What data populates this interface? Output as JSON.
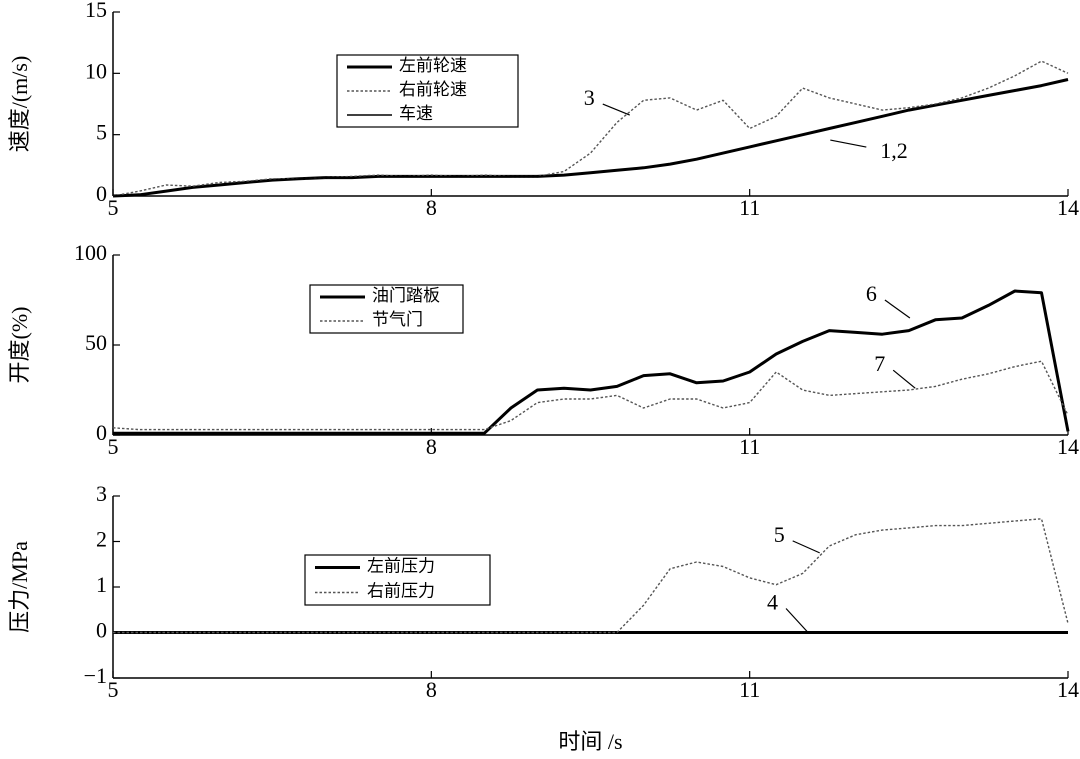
{
  "chart_data": [
    {
      "type": "line",
      "ylabel": "速度/(m/s)",
      "x": [
        5,
        5.25,
        5.5,
        5.75,
        6,
        6.25,
        6.5,
        6.75,
        7,
        7.25,
        7.5,
        7.75,
        8,
        8.25,
        8.5,
        8.75,
        9,
        9.25,
        9.5,
        9.75,
        10,
        10.25,
        10.5,
        10.75,
        11,
        11.25,
        11.5,
        11.75,
        12,
        12.25,
        12.5,
        12.75,
        13,
        13.25,
        13.5,
        13.75,
        14
      ],
      "series": [
        {
          "name": "左前轮速",
          "color": "#000000",
          "dash": "solid",
          "bold": true,
          "values": [
            0,
            0.1,
            0.4,
            0.7,
            0.9,
            1.1,
            1.3,
            1.4,
            1.5,
            1.5,
            1.6,
            1.6,
            1.6,
            1.6,
            1.6,
            1.6,
            1.6,
            1.7,
            1.9,
            2.1,
            2.3,
            2.6,
            3.0,
            3.5,
            4.0,
            4.5,
            5.0,
            5.5,
            6.0,
            6.5,
            7.0,
            7.4,
            7.8,
            8.2,
            8.6,
            9.0,
            9.5
          ]
        },
        {
          "name": "右前轮速",
          "color": "#555555",
          "dash": "dotted",
          "bold": false,
          "values": [
            0,
            0.4,
            0.9,
            0.8,
            1.1,
            1.2,
            1.4,
            1.4,
            1.5,
            1.6,
            1.7,
            1.6,
            1.7,
            1.6,
            1.7,
            1.6,
            1.6,
            2.0,
            3.5,
            6.0,
            7.8,
            8.0,
            7.0,
            7.8,
            5.5,
            6.5,
            8.8,
            8.0,
            7.5,
            7.0,
            7.2,
            7.5,
            8.0,
            8.8,
            9.8,
            11.0,
            10.0
          ]
        },
        {
          "name": "车速",
          "color": "#000000",
          "dash": "solid",
          "bold": false,
          "values": [
            0,
            0.1,
            0.4,
            0.7,
            0.9,
            1.1,
            1.3,
            1.4,
            1.5,
            1.5,
            1.6,
            1.6,
            1.6,
            1.6,
            1.6,
            1.6,
            1.6,
            1.7,
            1.9,
            2.1,
            2.3,
            2.6,
            3.0,
            3.5,
            4.0,
            4.5,
            5.0,
            5.5,
            6.0,
            6.5,
            7.0,
            7.4,
            7.8,
            8.2,
            8.6,
            9.0,
            9.5
          ]
        }
      ],
      "xlim": [
        5,
        14
      ],
      "xticks": [
        5,
        8,
        11,
        14
      ],
      "ylim": [
        0,
        15
      ],
      "yticks": [
        0,
        5,
        10,
        15
      ],
      "annotations": [
        {
          "text": "3",
          "x": 9.87,
          "y": 6.6
        },
        {
          "text": "1,2",
          "x": 11.76,
          "y": 4.56
        }
      ]
    },
    {
      "type": "line",
      "ylabel": "开度(%)",
      "x": [
        5,
        5.25,
        5.5,
        5.75,
        6,
        6.25,
        6.5,
        6.75,
        7,
        7.25,
        7.5,
        7.75,
        8,
        8.25,
        8.5,
        8.75,
        9,
        9.25,
        9.5,
        9.75,
        10,
        10.25,
        10.5,
        10.75,
        11,
        11.25,
        11.5,
        11.75,
        12,
        12.25,
        12.5,
        12.75,
        13,
        13.25,
        13.5,
        13.75,
        14
      ],
      "series": [
        {
          "name": "油门踏板",
          "color": "#000000",
          "dash": "solid",
          "bold": true,
          "values": [
            1,
            1,
            1,
            1,
            1,
            1,
            1,
            1,
            1,
            1,
            1,
            1,
            1,
            1,
            1,
            15,
            25,
            26,
            25,
            27,
            33,
            34,
            29,
            30,
            35,
            45,
            52,
            58,
            57,
            56,
            58,
            64,
            65,
            72,
            80,
            79,
            2
          ]
        },
        {
          "name": "节气门",
          "color": "#555555",
          "dash": "dotted",
          "bold": false,
          "values": [
            4,
            3,
            3,
            3,
            3,
            3,
            3,
            3,
            3,
            3,
            3,
            3,
            3,
            3,
            3,
            8,
            18,
            20,
            20,
            22,
            15,
            20,
            20,
            15,
            18,
            35,
            25,
            22,
            23,
            24,
            25,
            27,
            31,
            34,
            38,
            41,
            11
          ]
        }
      ],
      "xlim": [
        5,
        14
      ],
      "xticks": [
        5,
        8,
        11,
        14
      ],
      "ylim": [
        0,
        100
      ],
      "yticks": [
        0,
        50,
        100
      ],
      "annotations": [
        {
          "text": "6",
          "x": 12.51,
          "y": 65
        },
        {
          "text": "7",
          "x": 12.56,
          "y": 26
        }
      ]
    },
    {
      "type": "line",
      "ylabel": "压力/MPa",
      "xlabel": "时间 /s",
      "x": [
        5,
        5.25,
        5.5,
        5.75,
        6,
        6.25,
        6.5,
        6.75,
        7,
        7.25,
        7.5,
        7.75,
        8,
        8.25,
        8.5,
        8.75,
        9,
        9.25,
        9.5,
        9.75,
        10,
        10.25,
        10.5,
        10.75,
        11,
        11.25,
        11.5,
        11.75,
        12,
        12.25,
        12.5,
        12.75,
        13,
        13.25,
        13.5,
        13.75,
        14
      ],
      "series": [
        {
          "name": "左前压力",
          "color": "#000000",
          "dash": "solid",
          "bold": true,
          "values": [
            0,
            0,
            0,
            0,
            0,
            0,
            0,
            0,
            0,
            0,
            0,
            0,
            0,
            0,
            0,
            0,
            0,
            0,
            0,
            0,
            0,
            0,
            0,
            0,
            0,
            0,
            0,
            0,
            0,
            0,
            0,
            0,
            0,
            0,
            0,
            0,
            0
          ]
        },
        {
          "name": "右前压力",
          "color": "#555555",
          "dash": "dotted",
          "bold": false,
          "values": [
            0,
            0,
            0,
            0,
            0,
            0,
            0,
            0,
            0,
            0,
            0,
            0,
            0,
            0,
            0,
            0,
            0,
            0,
            0,
            0,
            0.6,
            1.4,
            1.55,
            1.45,
            1.2,
            1.05,
            1.3,
            1.9,
            2.15,
            2.25,
            2.3,
            2.35,
            2.35,
            2.4,
            2.45,
            2.5,
            0.2
          ]
        }
      ],
      "xlim": [
        5,
        14
      ],
      "xticks": [
        5,
        8,
        11,
        14
      ],
      "ylim": [
        -1,
        3
      ],
      "yticks": [
        {
          "value": -1,
          "label": "−1"
        },
        0,
        1,
        2,
        3
      ],
      "annotations": [
        {
          "text": "5",
          "x": 11.66,
          "y": 1.75
        },
        {
          "text": "4",
          "x": 11.55,
          "y": 0
        }
      ]
    }
  ]
}
